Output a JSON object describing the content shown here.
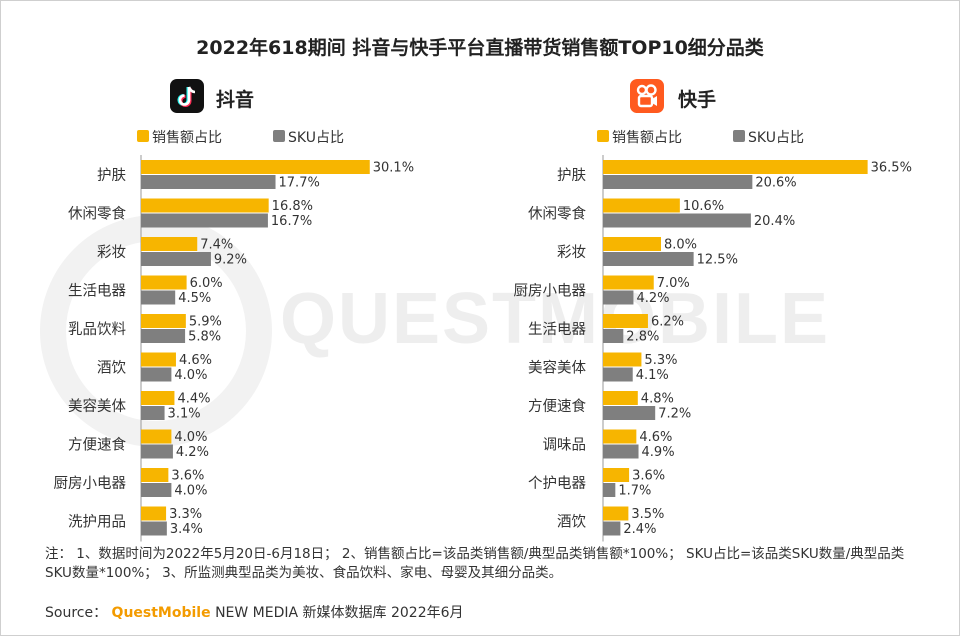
{
  "title": "2022年618期间 抖音与快手平台直播带货销售额TOP10细分品类",
  "watermark": "QUESTMOBILE",
  "colors": {
    "sales": "#f7b500",
    "sku": "#7f7f7f",
    "douyin_logo": "#111111",
    "kuaishou_logo": "#ff5a1f"
  },
  "icons": {
    "douyin": "tiktok-note-icon",
    "kuaishou": "kuaishou-camera-icon"
  },
  "legend": {
    "sales": "销售额占比",
    "sku": "SKU占比"
  },
  "chart_data": [
    {
      "type": "bar",
      "orientation": "horizontal",
      "title": "抖音",
      "categories": [
        "护肤",
        "休闲零食",
        "彩妆",
        "生活电器",
        "乳品饮料",
        "酒饮",
        "美容美体",
        "方便速食",
        "厨房小电器",
        "洗护用品"
      ],
      "series": [
        {
          "name": "销售额占比",
          "values": [
            30.1,
            16.8,
            7.4,
            6.0,
            5.9,
            4.6,
            4.4,
            4.0,
            3.6,
            3.3
          ]
        },
        {
          "name": "SKU占比",
          "values": [
            17.7,
            16.7,
            9.2,
            4.5,
            5.8,
            4.0,
            3.1,
            4.2,
            4.0,
            3.4
          ]
        }
      ],
      "unit": "%",
      "legend_position": "top-left",
      "grid": false
    },
    {
      "type": "bar",
      "orientation": "horizontal",
      "title": "快手",
      "categories": [
        "护肤",
        "休闲零食",
        "彩妆",
        "厨房小电器",
        "生活电器",
        "美容美体",
        "方便速食",
        "调味品",
        "个护电器",
        "酒饮"
      ],
      "series": [
        {
          "name": "销售额占比",
          "values": [
            36.5,
            10.6,
            8.0,
            7.0,
            6.2,
            5.3,
            4.8,
            4.6,
            3.6,
            3.5
          ]
        },
        {
          "name": "SKU占比",
          "values": [
            20.6,
            20.4,
            12.5,
            4.2,
            2.8,
            4.1,
            7.2,
            4.9,
            1.7,
            2.4
          ]
        }
      ],
      "unit": "%",
      "legend_position": "top-left",
      "grid": false
    }
  ],
  "note": "注：  1、数据时间为2022年5月20日-6月18日；  2、销售额占比=该品类销售额/典型品类销售额*100%；  SKU占比=该品类SKU数量/典型品类SKU数量*100%；  3、所监测典型品类为美妆、食品饮料、家电、母婴及其细分品类。",
  "source": {
    "label": "Source：",
    "brand": "QuestMobile",
    "rest": " NEW MEDIA 新媒体数据库  2022年6月"
  }
}
